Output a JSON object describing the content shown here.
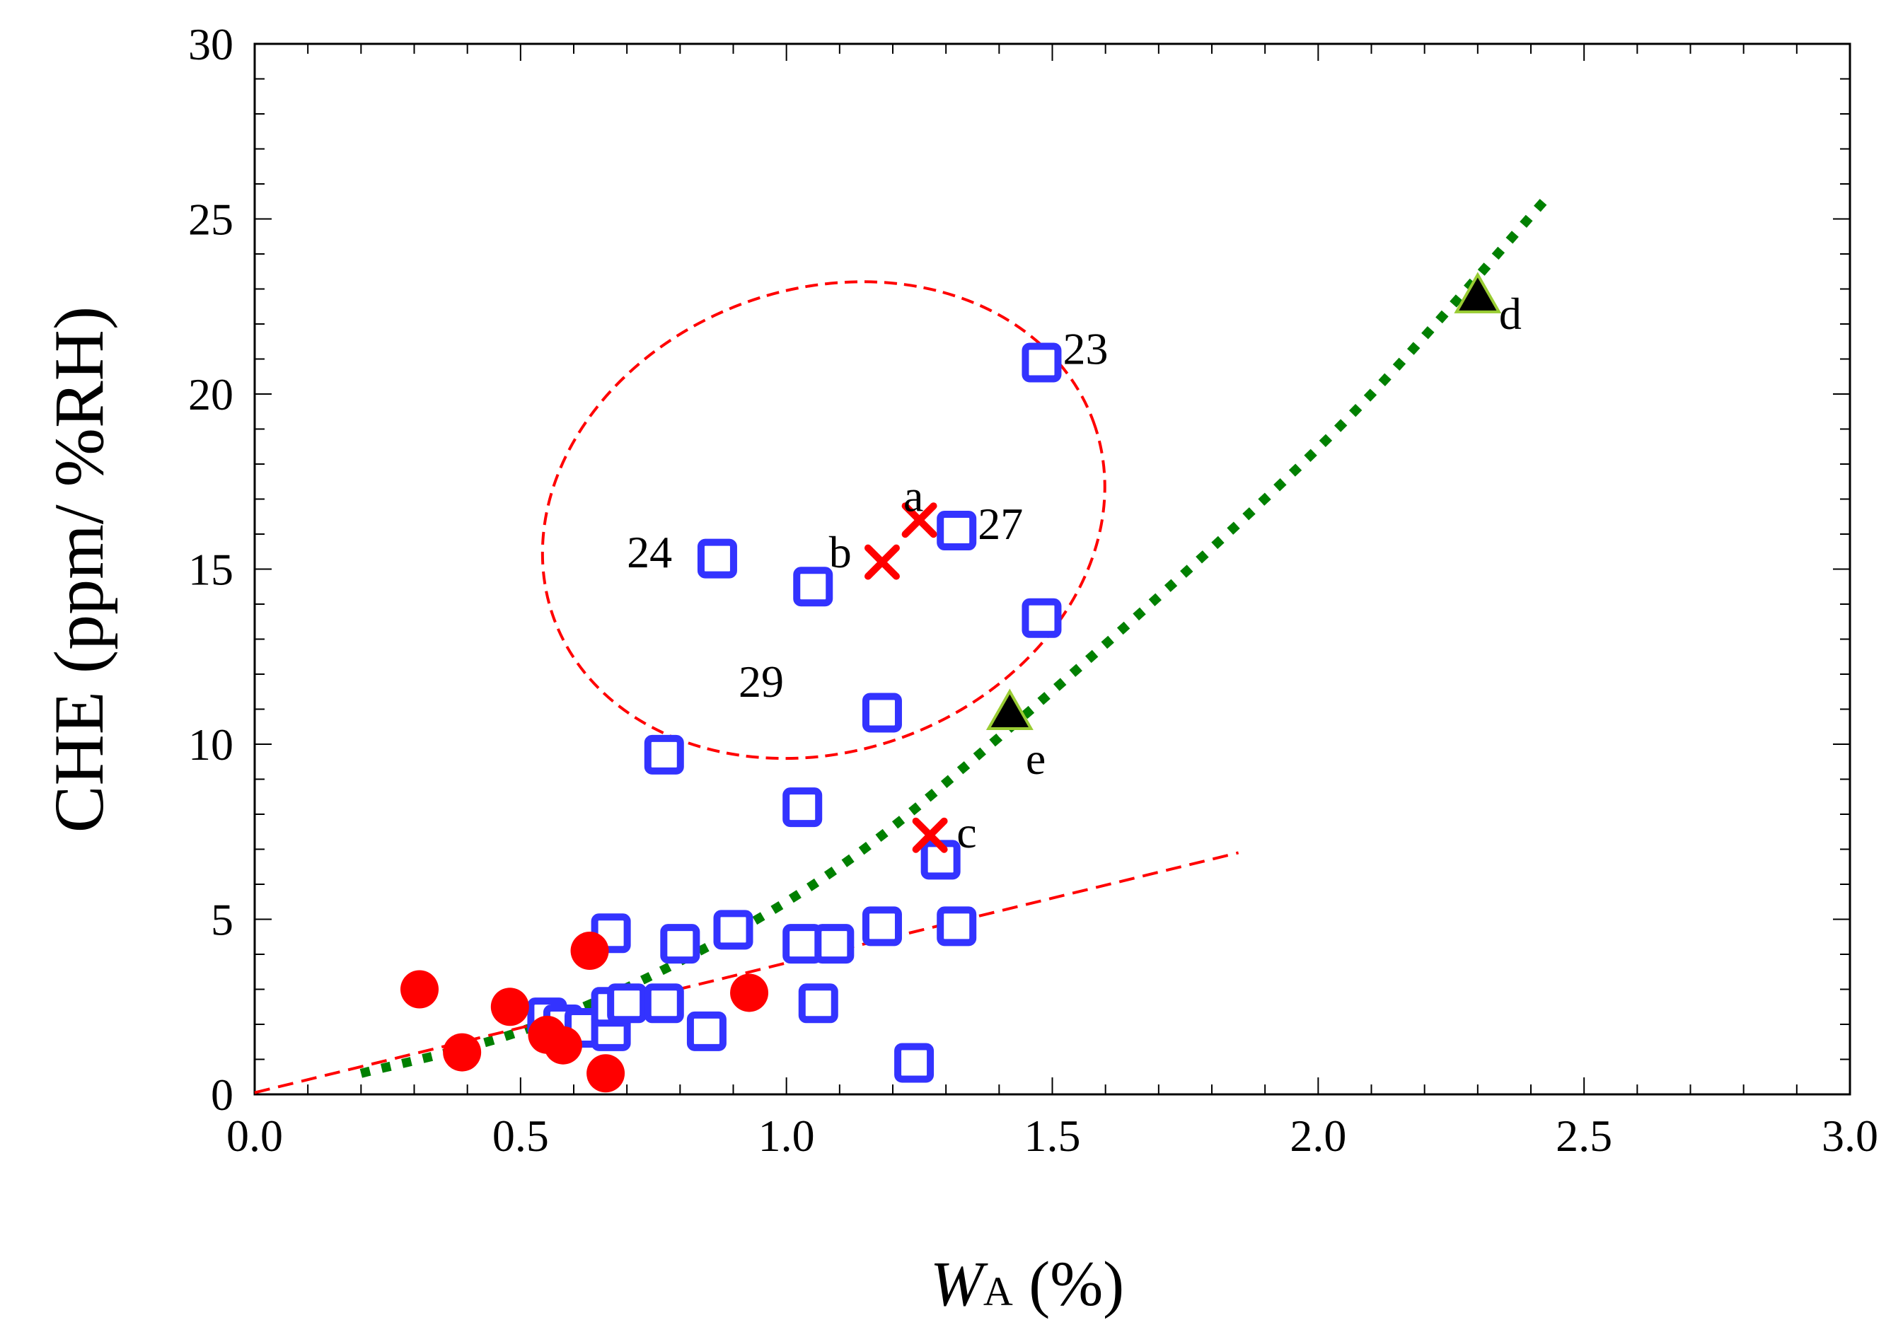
{
  "chart_data": {
    "type": "scatter",
    "xlabel_main": "W",
    "xlabel_sub": "A",
    "xlabel_unit": " (%)",
    "ylabel": "CHE (ppm/ %RH)",
    "xlim": [
      0,
      3
    ],
    "ylim": [
      0,
      30
    ],
    "x_ticks": [
      "0.0",
      "0.5",
      "1.0",
      "1.5",
      "2.0",
      "2.5",
      "3.0"
    ],
    "y_ticks": [
      "0",
      "5",
      "10",
      "15",
      "20",
      "25",
      "30"
    ],
    "colors": {
      "squares": "#3333ff",
      "circles": "#ff0000",
      "crosses": "#ff0000",
      "triangles": "#000000",
      "triangle_edge": "#99cc33",
      "green_trend": "#008000",
      "red_trend": "#ff0000",
      "ellipse": "#ff0000"
    },
    "series": [
      {
        "name": "squares",
        "points": [
          [
            0.55,
            2.2
          ],
          [
            0.58,
            2.0
          ],
          [
            0.62,
            1.9
          ],
          [
            0.67,
            1.8
          ],
          [
            0.67,
            2.5
          ],
          [
            0.7,
            2.6
          ],
          [
            0.67,
            4.6
          ],
          [
            0.77,
            2.6
          ],
          [
            0.8,
            4.3
          ],
          [
            0.85,
            1.8
          ],
          [
            0.87,
            15.3
          ],
          [
            0.9,
            4.7
          ],
          [
            0.77,
            9.7
          ],
          [
            1.03,
            4.3
          ],
          [
            1.05,
            14.5
          ],
          [
            1.06,
            2.6
          ],
          [
            1.03,
            8.2
          ],
          [
            1.09,
            4.3
          ],
          [
            1.18,
            4.8
          ],
          [
            1.18,
            10.9
          ],
          [
            1.24,
            0.9
          ],
          [
            1.29,
            6.7
          ],
          [
            1.32,
            4.8
          ],
          [
            1.32,
            16.1
          ],
          [
            1.48,
            20.9
          ],
          [
            1.48,
            13.6
          ]
        ]
      },
      {
        "name": "circles",
        "points": [
          [
            0.31,
            3.0
          ],
          [
            0.39,
            1.2
          ],
          [
            0.48,
            2.5
          ],
          [
            0.55,
            1.7
          ],
          [
            0.58,
            1.4
          ],
          [
            0.63,
            4.1
          ],
          [
            0.66,
            0.6
          ],
          [
            0.93,
            2.9
          ]
        ]
      },
      {
        "name": "crosses",
        "points": [
          [
            1.25,
            16.4
          ],
          [
            1.18,
            15.2
          ],
          [
            1.27,
            7.4
          ]
        ]
      },
      {
        "name": "triangles",
        "points": [
          [
            2.3,
            22.8
          ],
          [
            1.42,
            10.9
          ]
        ]
      }
    ],
    "trend_lines": [
      {
        "name": "green-dotted-fit",
        "points": [
          [
            0.2,
            0.6
          ],
          [
            0.5,
            1.8
          ],
          [
            0.8,
            3.8
          ],
          [
            1.1,
            6.5
          ],
          [
            1.4,
            10.2
          ],
          [
            1.8,
            15.6
          ],
          [
            2.1,
            20.0
          ],
          [
            2.43,
            25.6
          ]
        ]
      },
      {
        "name": "red-dashed-fit",
        "points": [
          [
            0.0,
            0.05
          ],
          [
            1.85,
            6.9
          ]
        ]
      }
    ],
    "ellipse": {
      "cx": 1.07,
      "cy": 16.4,
      "rx": 0.54,
      "ry": 6.6,
      "rotation_deg": -20
    },
    "annotations": [
      {
        "text": "23",
        "x": 1.52,
        "y": 21.3
      },
      {
        "text": "24",
        "x": 0.7,
        "y": 15.5
      },
      {
        "text": "27",
        "x": 1.36,
        "y": 16.3
      },
      {
        "text": "29",
        "x": 0.91,
        "y": 11.8
      },
      {
        "text": "a",
        "x": 1.22,
        "y": 17.1
      },
      {
        "text": "b",
        "x": 1.08,
        "y": 15.5
      },
      {
        "text": "c",
        "x": 1.32,
        "y": 7.5
      },
      {
        "text": "d",
        "x": 2.34,
        "y": 22.3
      },
      {
        "text": "e",
        "x": 1.45,
        "y": 9.6
      }
    ]
  }
}
